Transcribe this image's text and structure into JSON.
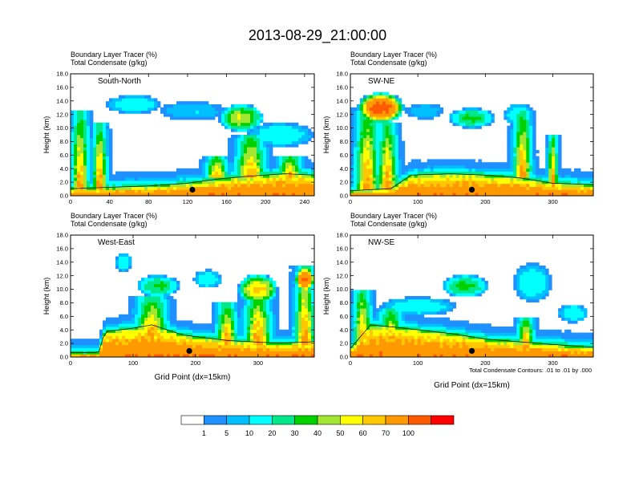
{
  "figure": {
    "title": "2013-08-29_21:00:00",
    "footnote": "Total Condensate Contours: .01 to .01 by .000",
    "colorbar": {
      "colors": [
        "#ffffff",
        "#1e90ff",
        "#00bfff",
        "#00ffff",
        "#00e88a",
        "#00d200",
        "#a0e632",
        "#ffff00",
        "#ffc800",
        "#ff9900",
        "#ff5a00",
        "#ff0000"
      ],
      "labels": [
        "1",
        "5",
        "10",
        "20",
        "30",
        "40",
        "50",
        "60",
        "70",
        "100"
      ]
    }
  },
  "chart_data": [
    {
      "type": "heatmap",
      "panel": "South-North",
      "left_title_1": "Boundary Layer Tracer   (%)",
      "left_title_2": "Total Condensate   (g/kg)",
      "ylabel": "Height (km)",
      "xlabel": "",
      "ylim": [
        0,
        18
      ],
      "xlim": [
        0,
        250
      ],
      "yticks": [
        "0.0",
        "2.0",
        "4.0",
        "6.0",
        "8.0",
        "10.0",
        "12.0",
        "14.0",
        "16.0",
        "18.0"
      ],
      "xticks": [
        "0",
        "40",
        "80",
        "120",
        "160",
        "200",
        "240"
      ],
      "marker_x": 125,
      "pbl_top": [
        [
          0,
          0.8
        ],
        [
          40,
          1.0
        ],
        [
          80,
          1.2
        ],
        [
          120,
          1.6
        ],
        [
          150,
          2.2
        ],
        [
          180,
          2.6
        ],
        [
          220,
          3.0
        ],
        [
          250,
          2.8
        ]
      ],
      "plumes": [
        {
          "x": 10,
          "z0": 1,
          "z1": 12.5,
          "w": 14
        },
        {
          "x": 30,
          "z0": 1,
          "z1": 11,
          "w": 12
        },
        {
          "x": 150,
          "z0": 2.5,
          "z1": 6,
          "w": 18
        },
        {
          "x": 185,
          "z0": 2.5,
          "z1": 9,
          "w": 24
        },
        {
          "x": 225,
          "z0": 2.5,
          "z1": 6,
          "w": 20
        }
      ],
      "anvils": [
        {
          "x": 65,
          "z": 13.5,
          "hw": 25,
          "hh": 1.2,
          "v": 10
        },
        {
          "x": 125,
          "z": 12.5,
          "hw": 30,
          "hh": 1.2,
          "v": 5
        },
        {
          "x": 175,
          "z": 11.5,
          "hw": 20,
          "hh": 1.8,
          "v": 30
        },
        {
          "x": 215,
          "z": 9.0,
          "hw": 30,
          "hh": 1.6,
          "v": 10
        }
      ]
    },
    {
      "type": "heatmap",
      "panel": "SW-NE",
      "left_title_1": "Boundary Layer Tracer   (%)",
      "left_title_2": "Total Condensate   (g/kg)",
      "ylabel": "Height (km)",
      "xlabel": "",
      "ylim": [
        0,
        18
      ],
      "xlim": [
        0,
        360
      ],
      "yticks": [
        "0.0",
        "2.0",
        "4.0",
        "6.0",
        "8.0",
        "10.0",
        "12.0",
        "14.0",
        "16.0",
        "18.0"
      ],
      "xticks": [
        "0",
        "100",
        "200",
        "300"
      ],
      "marker_x": 180,
      "pbl_top": [
        [
          0,
          0.5
        ],
        [
          60,
          0.8
        ],
        [
          90,
          2.8
        ],
        [
          150,
          3.0
        ],
        [
          200,
          2.8
        ],
        [
          250,
          2.4
        ],
        [
          300,
          1.6
        ],
        [
          360,
          1.4
        ]
      ],
      "plumes": [
        {
          "x": 25,
          "z0": 1,
          "z1": 13,
          "w": 28
        },
        {
          "x": 55,
          "z0": 1,
          "z1": 11,
          "w": 24
        },
        {
          "x": 255,
          "z0": 2.5,
          "z1": 12.5,
          "w": 22
        },
        {
          "x": 300,
          "z0": 1.5,
          "z1": 9,
          "w": 12
        }
      ],
      "anvils": [
        {
          "x": 45,
          "z": 13.0,
          "hw": 30,
          "hh": 2.0,
          "v": 70
        },
        {
          "x": 110,
          "z": 12.5,
          "hw": 25,
          "hh": 1.0,
          "v": 5
        },
        {
          "x": 180,
          "z": 11.5,
          "hw": 30,
          "hh": 1.3,
          "v": 20
        },
        {
          "x": 250,
          "z": 12.0,
          "hw": 20,
          "hh": 1.5,
          "v": 10
        }
      ]
    },
    {
      "type": "heatmap",
      "panel": "West-East",
      "left_title_1": "Boundary Layer Tracer   (%)",
      "left_title_2": "Total Condensate   (g/kg)",
      "ylabel": "Height (km)",
      "xlabel": "Grid Point (dx=15km)",
      "ylim": [
        0,
        18
      ],
      "xlim": [
        0,
        390
      ],
      "yticks": [
        "0.0",
        "2.0",
        "4.0",
        "6.0",
        "8.0",
        "10.0",
        "12.0",
        "14.0",
        "16.0",
        "18.0"
      ],
      "xticks": [
        "0",
        "100",
        "200",
        "300"
      ],
      "marker_x": 190,
      "pbl_top": [
        [
          0,
          0.4
        ],
        [
          45,
          0.4
        ],
        [
          55,
          3.5
        ],
        [
          100,
          4.0
        ],
        [
          130,
          4.5
        ],
        [
          180,
          3.0
        ],
        [
          250,
          2.2
        ],
        [
          330,
          1.8
        ],
        [
          390,
          2.0
        ]
      ],
      "plumes": [
        {
          "x": 130,
          "z0": 3,
          "z1": 9,
          "w": 40
        },
        {
          "x": 250,
          "z0": 2,
          "z1": 8,
          "w": 26
        },
        {
          "x": 300,
          "z0": 2,
          "z1": 10,
          "w": 34
        },
        {
          "x": 375,
          "z0": 2,
          "z1": 13.5,
          "w": 26
        }
      ],
      "anvils": [
        {
          "x": 85,
          "z": 14.0,
          "hw": 12,
          "hh": 1.2,
          "v": 10
        },
        {
          "x": 140,
          "z": 10.5,
          "hw": 30,
          "hh": 1.4,
          "v": 20
        },
        {
          "x": 220,
          "z": 11.5,
          "hw": 20,
          "hh": 1.2,
          "v": 10
        },
        {
          "x": 300,
          "z": 10.0,
          "hw": 28,
          "hh": 2.0,
          "v": 40
        },
        {
          "x": 375,
          "z": 11.5,
          "hw": 14,
          "hh": 1.6,
          "v": 70
        }
      ]
    },
    {
      "type": "heatmap",
      "panel": "NW-SE",
      "left_title_1": "Boundary Layer Tracer   (%)",
      "left_title_2": "Total Condensate   (g/kg)",
      "ylabel": "Height (km)",
      "xlabel": "Grid Point (dx=15km)",
      "ylim": [
        0,
        18
      ],
      "xlim": [
        0,
        360
      ],
      "yticks": [
        "0.0",
        "2.0",
        "4.0",
        "6.0",
        "8.0",
        "10.0",
        "12.0",
        "14.0",
        "16.0",
        "18.0"
      ],
      "xticks": [
        "0",
        "100",
        "200",
        "300"
      ],
      "marker_x": 180,
      "pbl_top": [
        [
          0,
          1.0
        ],
        [
          30,
          4.5
        ],
        [
          80,
          4.0
        ],
        [
          150,
          3.2
        ],
        [
          200,
          2.4
        ],
        [
          250,
          2.0
        ],
        [
          300,
          1.6
        ],
        [
          360,
          1.2
        ]
      ],
      "plumes": [
        {
          "x": 18,
          "z0": 1,
          "z1": 10,
          "w": 22
        },
        {
          "x": 60,
          "z0": 1.5,
          "z1": 7,
          "w": 30
        },
        {
          "x": 260,
          "z0": 1.5,
          "z1": 6,
          "w": 20
        }
      ],
      "anvils": [
        {
          "x": 100,
          "z": 7.5,
          "hw": 50,
          "hh": 1.2,
          "v": 10
        },
        {
          "x": 170,
          "z": 10.5,
          "hw": 30,
          "hh": 1.5,
          "v": 20
        },
        {
          "x": 270,
          "z": 11.0,
          "hw": 25,
          "hh": 2.5,
          "v": 10
        },
        {
          "x": 330,
          "z": 6.5,
          "hw": 20,
          "hh": 1.2,
          "v": 10
        }
      ]
    }
  ]
}
